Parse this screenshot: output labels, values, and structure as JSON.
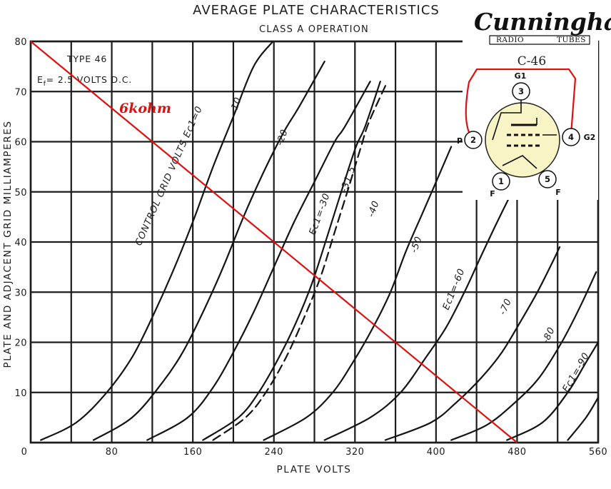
{
  "chart_data": {
    "type": "line",
    "title": "AVERAGE PLATE CHARACTERISTICS",
    "subtitle": "CLASS A OPERATION",
    "xlabel": "PLATE VOLTS",
    "ylabel": "PLATE AND ADJACENT GRID MILLIAMPERES",
    "xlim": [
      0,
      560
    ],
    "ylim": [
      0,
      80
    ],
    "x_ticks": [
      "0",
      "80",
      "160",
      "240",
      "320",
      "400",
      "480",
      "560"
    ],
    "y_ticks": [
      "10",
      "20",
      "30",
      "40",
      "50",
      "60",
      "70",
      "80"
    ],
    "grid": true,
    "annotations": {
      "type": "TYPE 46",
      "ef_symbol": "E",
      "ef_sub": "f",
      "ef_rest": "= 2.5 VOLTS D.C."
    },
    "series": [
      {
        "name": "CONTROL GRID VOLTS Ec1=0",
        "style": "solid",
        "x": [
          10,
          45,
          75,
          100,
          120,
          140,
          160,
          180,
          200,
          220,
          239
        ],
        "y": [
          0.5,
          4,
          10,
          17,
          25,
          34,
          44,
          55,
          65,
          75,
          80
        ]
      },
      {
        "name": "-10",
        "style": "solid",
        "x": [
          62,
          100,
          130,
          150,
          170,
          190,
          210,
          230,
          250,
          265,
          290
        ],
        "y": [
          0.5,
          5,
          12,
          18,
          26,
          35,
          45,
          54,
          62,
          67,
          76
        ]
      },
      {
        "name": "-20",
        "style": "solid",
        "x": [
          115,
          155,
          180,
          200,
          220,
          240,
          260,
          280,
          300,
          310,
          335
        ],
        "y": [
          0.5,
          5,
          11,
          18,
          26,
          35,
          44,
          52,
          60,
          63,
          72
        ]
      },
      {
        "name": "Ec1=-30",
        "style": "solid",
        "x": [
          170,
          205,
          225,
          245,
          262,
          278,
          294,
          308,
          321,
          330,
          345
        ],
        "y": [
          0.5,
          5,
          10,
          17,
          24,
          32,
          42,
          51,
          59,
          63,
          72
        ]
      },
      {
        "name": "-31.5",
        "style": "dashed",
        "x": [
          180,
          212,
          232,
          252,
          270,
          286,
          300,
          314,
          326,
          334,
          352
        ],
        "y": [
          0.5,
          5,
          10,
          17,
          25,
          33,
          42,
          51,
          59,
          64,
          72
        ]
      },
      {
        "name": "-40",
        "style": "solid",
        "x": [
          230,
          272,
          298,
          318,
          338,
          355,
          370,
          385,
          398,
          415
        ],
        "y": [
          0.5,
          5,
          10,
          16,
          23,
          30,
          38,
          45,
          51,
          59
        ]
      },
      {
        "name": "-50",
        "style": "solid",
        "x": [
          290,
          335,
          365,
          390,
          410,
          428,
          444,
          458,
          475
        ],
        "y": [
          0.5,
          5,
          10,
          17,
          23,
          30,
          37,
          43,
          50
        ]
      },
      {
        "name": "Ec1=-60",
        "style": "solid",
        "x": [
          350,
          395,
          420,
          445,
          465,
          483,
          500,
          515,
          522
        ],
        "y": [
          0.5,
          4,
          8,
          13,
          18,
          24,
          30,
          36,
          39
        ]
      },
      {
        "name": "-70",
        "style": "solid",
        "x": [
          415,
          450,
          478,
          502,
          524,
          542,
          558
        ],
        "y": [
          0.5,
          3.5,
          8,
          13,
          20,
          27,
          34
        ]
      },
      {
        "name": "-80",
        "style": "solid",
        "x": [
          470,
          505,
          530,
          548,
          560
        ],
        "y": [
          0.5,
          4,
          10,
          16,
          20
        ]
      },
      {
        "name": "Ec1=-90",
        "style": "solid",
        "x": [
          530,
          548,
          560
        ],
        "y": [
          0.5,
          5,
          9
        ]
      }
    ],
    "curve_labels": [
      "CONTROL GRID VOLTS Ec1=0",
      "-10",
      "-20",
      "Ec1=-30",
      "-31.5",
      "-40",
      "-50",
      "Ec1=-60",
      "-70",
      "-80",
      "Ec1=-90"
    ],
    "load_line": {
      "label": "6kohm",
      "color": "#dd1111",
      "x": [
        0,
        480
      ],
      "y": [
        80,
        0
      ]
    }
  },
  "overlay": {
    "brand": "Cunningham",
    "brand_sub_left": "RADIO",
    "brand_sub_right": "TUBES",
    "model": "C-46",
    "wire_color": "#dd1111",
    "envelope_color": "#f8f4c6",
    "pins": [
      {
        "number": "1",
        "name": "F"
      },
      {
        "number": "2",
        "name": "P"
      },
      {
        "number": "3",
        "name": "G1"
      },
      {
        "number": "4",
        "name": "G2"
      },
      {
        "number": "5",
        "name": "F"
      }
    ]
  }
}
